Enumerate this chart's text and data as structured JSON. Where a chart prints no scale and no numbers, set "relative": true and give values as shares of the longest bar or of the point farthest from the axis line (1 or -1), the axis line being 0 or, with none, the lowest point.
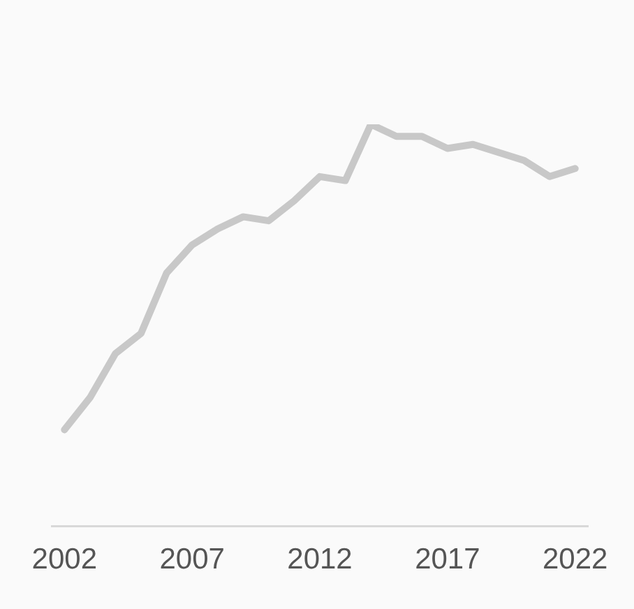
{
  "chart_data": {
    "type": "line",
    "relative": true,
    "x": [
      2002,
      2003,
      2004,
      2005,
      2006,
      2007,
      2008,
      2009,
      2010,
      2011,
      2012,
      2013,
      2014,
      2015,
      2016,
      2017,
      2018,
      2019,
      2020,
      2021,
      2022
    ],
    "series": [
      {
        "color": "#c8c8c8",
        "values": [
          0.24,
          0.32,
          0.43,
          0.48,
          0.63,
          0.7,
          0.74,
          0.77,
          0.76,
          0.81,
          0.87,
          0.86,
          1,
          0.97,
          0.97,
          0.94,
          0.95,
          0.93,
          0.91,
          0.87,
          0.89
        ]
      }
    ],
    "xlim": [
      2001.5,
      2022.5
    ],
    "xticks": [
      2002,
      2007,
      2012,
      2017,
      2022
    ],
    "grid": false,
    "legend": false,
    "marker": "none",
    "line_style": "solid"
  }
}
